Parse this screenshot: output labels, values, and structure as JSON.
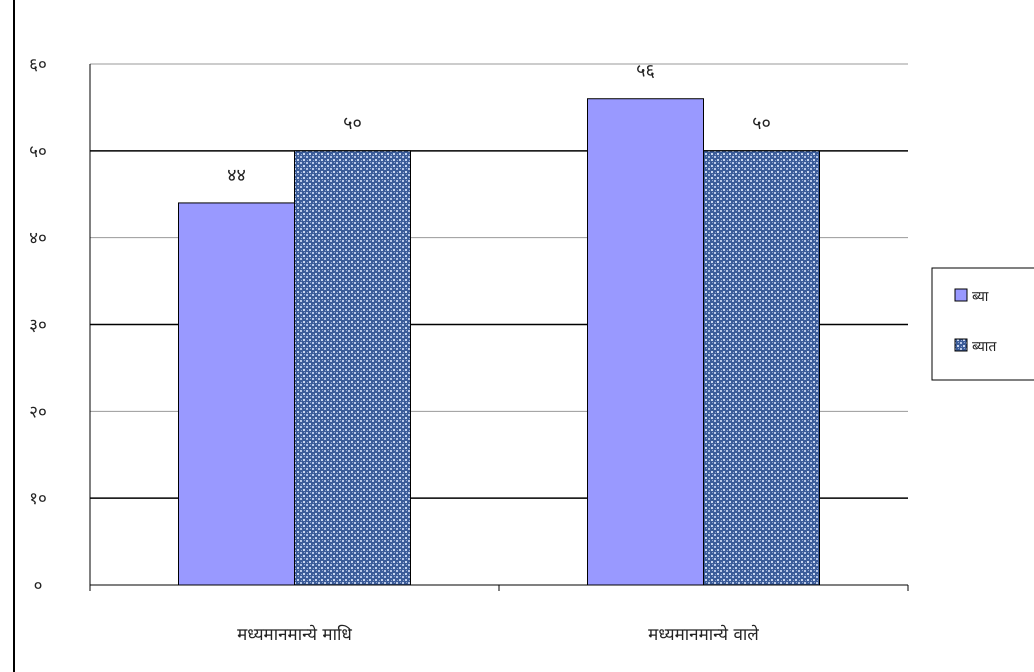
{
  "chart_data": {
    "type": "bar",
    "categories": [
      "मध्यमानमान्ये माधि",
      "मध्यमानमान्ये वाले"
    ],
    "series": [
      {
        "name": "ब्या",
        "values": [
          44,
          56
        ],
        "color": "#9999ff",
        "pattern": "solid"
      },
      {
        "name": "ब्यात",
        "values": [
          50,
          50
        ],
        "color": "#3b5c99",
        "pattern": "textured"
      }
    ],
    "data_labels": [
      [
        "४४",
        "५६"
      ],
      [
        "५०",
        "५०"
      ]
    ],
    "yticks": [
      0,
      10,
      20,
      30,
      40,
      50,
      60
    ],
    "ytick_labels": [
      "०",
      "१०",
      "२०",
      "३०",
      "४०",
      "५०",
      "६०"
    ],
    "ylim": [
      0,
      60
    ],
    "grid": true,
    "legend_position": "right",
    "title": "",
    "xlabel": "",
    "ylabel": ""
  }
}
